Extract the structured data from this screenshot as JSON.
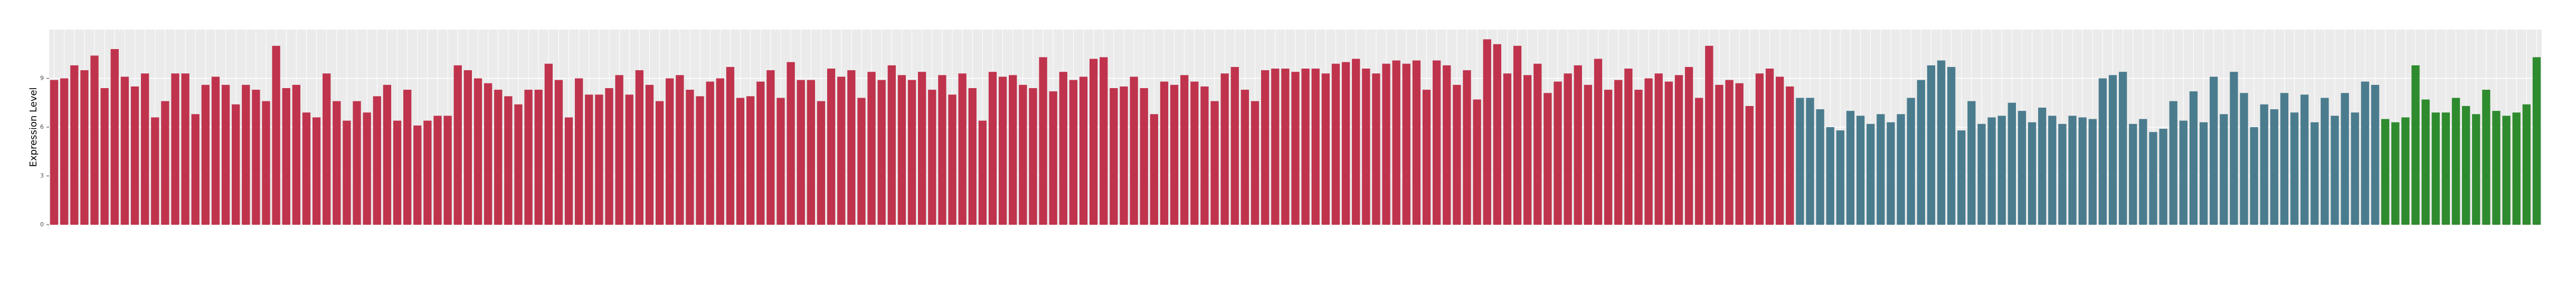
{
  "chart_data": {
    "type": "bar",
    "y_label": "Expression Level",
    "ylim": [
      0,
      12
    ],
    "yticks": [
      0,
      3,
      6,
      9
    ],
    "grid": true,
    "series": [
      {
        "color": "#c0334d",
        "values": [
          8.9,
          9.0,
          9.8,
          9.5,
          10.4,
          8.4,
          10.8,
          9.1,
          8.5,
          9.3,
          6.6,
          7.6,
          9.3,
          9.3,
          6.8,
          8.6,
          9.1,
          8.6,
          7.4,
          8.6,
          8.3,
          7.6,
          11.0,
          8.4,
          8.6,
          6.9,
          6.6,
          9.3,
          7.6,
          6.4,
          7.6,
          6.9,
          7.9,
          8.6,
          6.4,
          8.3,
          6.1,
          6.4,
          6.7,
          6.7,
          9.8,
          9.5,
          9.0,
          8.7,
          8.3,
          7.9,
          7.4,
          8.3,
          8.3,
          9.9,
          8.9,
          6.6,
          9.0,
          8.0,
          8.0,
          8.4,
          9.2,
          8.0,
          9.5,
          8.6,
          7.6,
          9.0,
          9.2,
          8.3,
          7.9,
          8.8,
          9.0,
          9.7,
          7.8,
          7.9,
          8.8,
          9.5,
          7.8,
          10.0,
          8.9,
          8.9,
          7.6,
          9.6,
          9.1,
          9.5,
          7.8,
          9.4,
          8.9,
          9.8,
          9.2,
          8.9,
          9.4,
          8.3,
          9.2,
          8.0,
          9.3,
          8.4,
          6.4,
          9.4,
          9.1,
          9.2,
          8.6,
          8.4,
          10.3,
          8.2,
          9.4,
          8.9,
          9.1,
          10.2,
          10.3,
          8.4,
          8.5,
          9.1,
          8.4,
          6.8,
          8.8,
          8.6,
          9.2,
          8.8,
          8.5,
          7.6,
          9.3,
          9.7,
          8.3,
          7.6,
          9.5,
          9.6,
          9.6,
          9.4,
          9.6,
          9.6,
          9.3,
          9.9,
          10.0,
          10.2,
          9.6,
          9.3,
          9.9,
          10.1,
          9.9,
          10.1,
          8.3,
          10.1,
          9.8,
          8.6,
          9.5,
          7.7,
          11.4,
          11.1,
          9.3,
          11.0,
          9.2,
          9.9,
          8.1,
          8.8,
          9.3,
          9.8,
          8.6,
          10.2,
          8.3,
          8.9,
          9.6,
          8.3,
          9.0,
          9.3,
          8.8,
          9.2,
          9.7,
          7.8,
          11.0,
          8.6,
          8.9,
          8.7,
          7.3,
          9.3,
          9.6,
          9.1,
          8.5
        ]
      },
      {
        "color": "#4a7c8e",
        "values": [
          7.8,
          7.8,
          7.1,
          6.0,
          5.8,
          7.0,
          6.7,
          6.2,
          6.8,
          6.3,
          6.8,
          7.8,
          8.9,
          9.8,
          10.1,
          9.7,
          5.8,
          7.6,
          6.2,
          6.6,
          6.7,
          7.5,
          7.0,
          6.3,
          7.2,
          6.7,
          6.2,
          6.7,
          6.6,
          6.5,
          9.0,
          9.2,
          9.4,
          6.2,
          6.5,
          5.7,
          5.9,
          7.6,
          6.4,
          8.2,
          6.3,
          9.1,
          6.8,
          9.4,
          8.1,
          6.0,
          7.4,
          7.1,
          8.1,
          6.9,
          8.0,
          6.3,
          7.8,
          6.7,
          8.1,
          6.9,
          8.8,
          8.6
        ]
      },
      {
        "color": "#2e8b2e",
        "values": [
          6.5,
          6.3,
          6.6,
          9.8,
          7.7,
          6.9,
          6.9,
          7.8,
          7.3,
          6.8,
          8.3,
          7.0,
          6.7,
          6.9,
          7.4,
          10.3
        ]
      }
    ]
  }
}
